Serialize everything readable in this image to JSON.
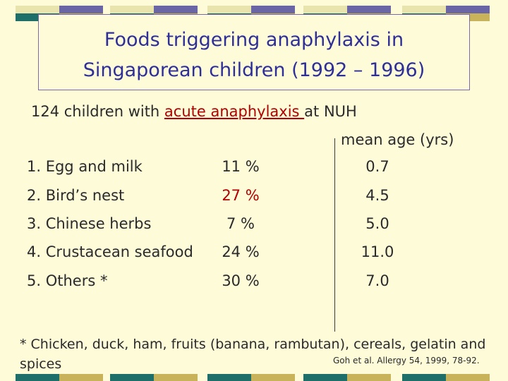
{
  "slide": {
    "title_line1": "Foods triggering anaphylaxis in",
    "title_line2": "Singaporean children (1992 – 1996)",
    "intro_prefix": "124 children with ",
    "intro_highlight": "acute anaphylaxis ",
    "intro_suffix": "at NUH",
    "age_header": "mean age (yrs)",
    "rows": [
      {
        "food": "1. Egg and milk",
        "percent": "11 %",
        "age": "0.7"
      },
      {
        "food": "2. Bird’s nest",
        "percent": "27 %",
        "age": "4.5"
      },
      {
        "food": "3. Chinese herbs",
        "percent": "7 %",
        "age": "5.0"
      },
      {
        "food": "4. Crustacean seafood",
        "percent": "24 %",
        "age": "11.0"
      },
      {
        "food": "5. Others *",
        "percent": "30 %",
        "age": "7.0"
      }
    ],
    "footnote": "* Chicken, duck, ham, fruits (banana, rambutan), cereals, gelatin and spices",
    "citation": "Goh et al. Allergy 54, 1999, 78-92."
  },
  "colors": {
    "background": "#fdfbd8",
    "title": "#2f2f98",
    "highlight_red": "#b30000",
    "band_teal": "#1e6e6a",
    "band_purple": "#6a65a5",
    "band_gold": "#c8b25a",
    "band_cream": "#e9e3ad"
  }
}
